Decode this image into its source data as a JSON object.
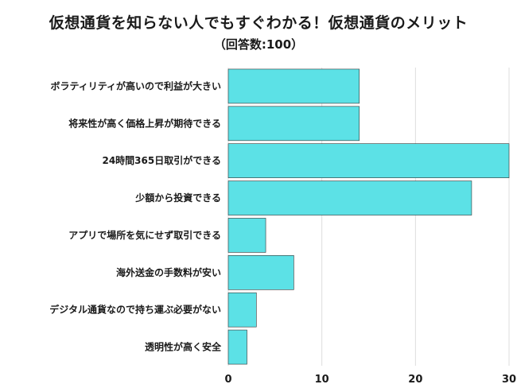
{
  "chart_data": {
    "type": "bar",
    "orientation": "horizontal",
    "title": "仮想通貨を知らない人でもすぐわかる！仮想通貨のメリット",
    "subtitle": "（回答数:100）",
    "categories": [
      "ボラティリティが高いので利益が大きい",
      "将来性が高く価格上昇が期待できる",
      "24時間365日取引ができる",
      "少額から投資できる",
      "アプリで場所を気にせず取引できる",
      "海外送金の手数料が安い",
      "デジタル通貨なので持ち運ぶ必要がない",
      "透明性が高く安全"
    ],
    "values": [
      14,
      14,
      30,
      26,
      4,
      7,
      3,
      2
    ],
    "xlim": [
      0,
      30
    ],
    "xticks": [
      "0",
      "10",
      "20",
      "30"
    ],
    "grid": true,
    "bar_color": "#5ce1e6",
    "bar_edge_color": "#333333",
    "grid_color": "#dddddd"
  }
}
